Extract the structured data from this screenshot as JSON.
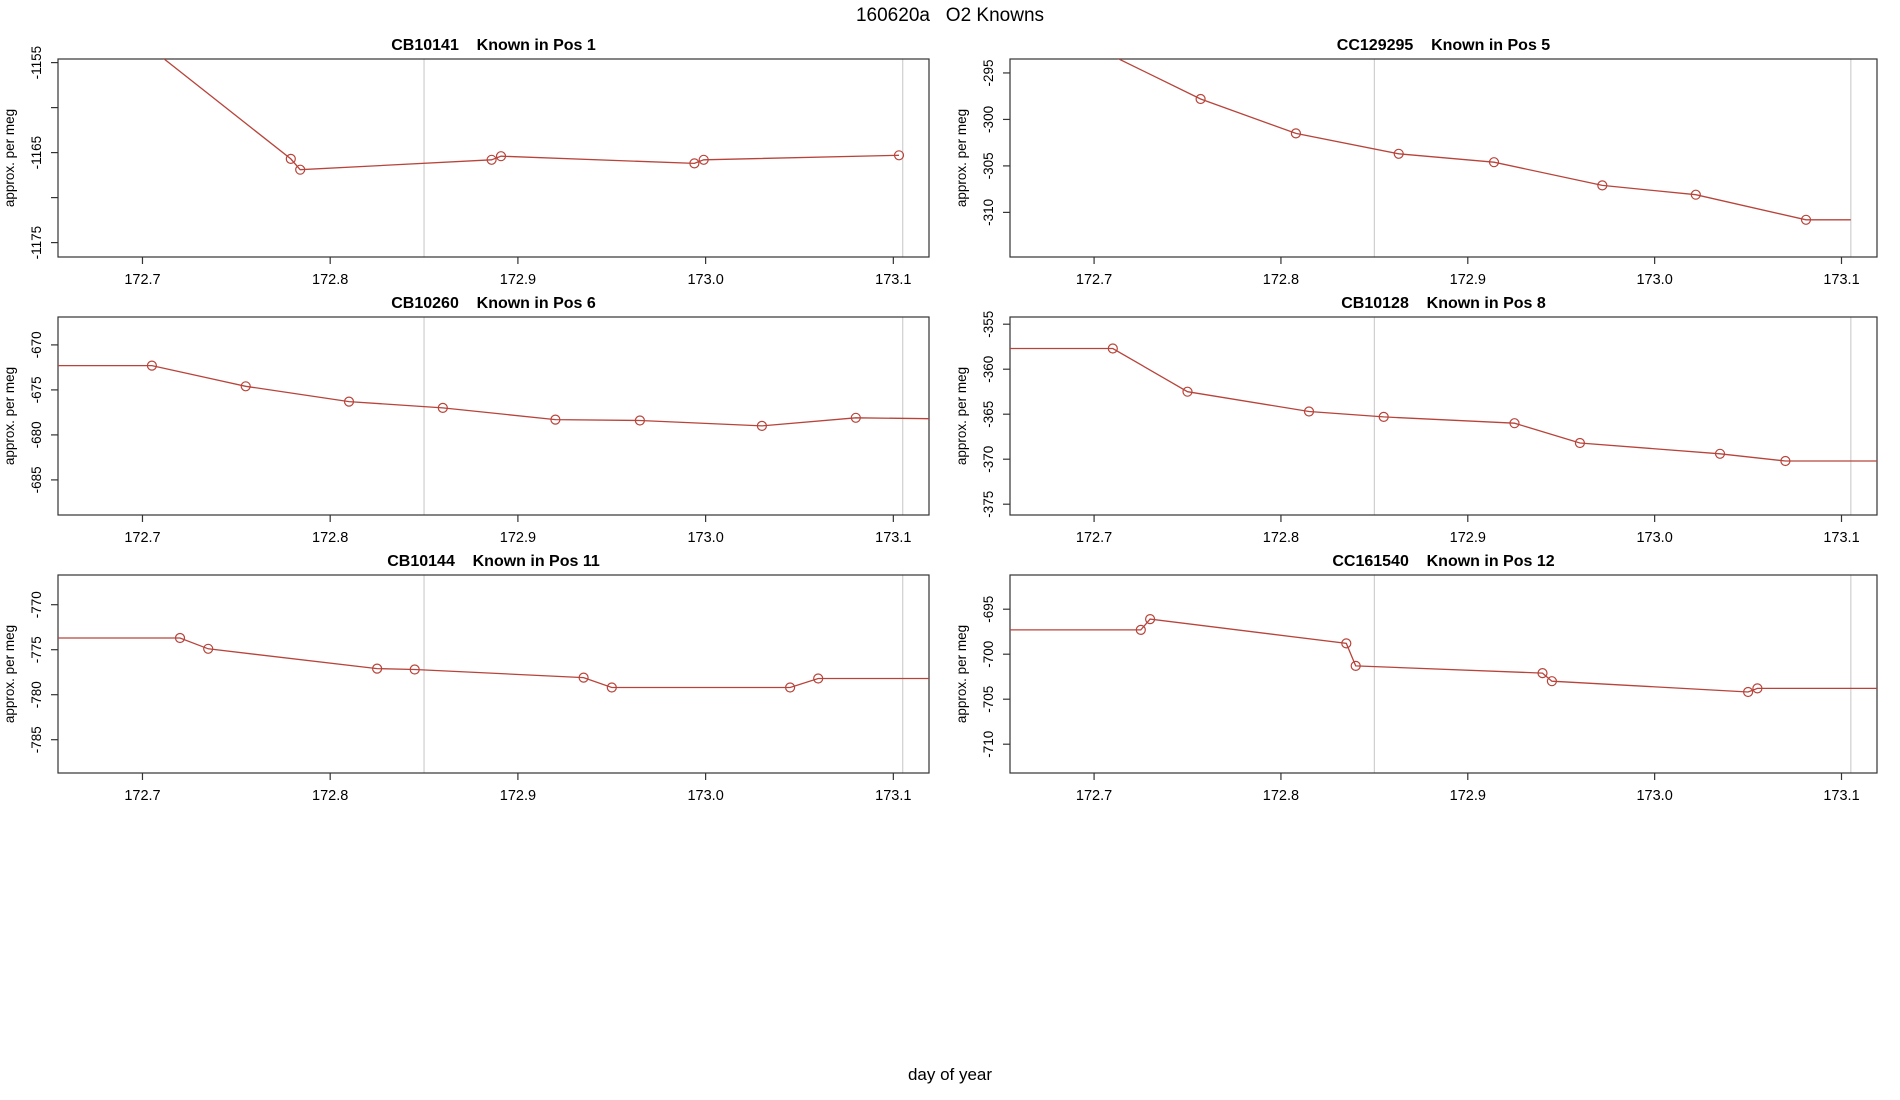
{
  "title": "160620a   O2 Knowns",
  "xlabel": "day of year",
  "colors": {
    "line": "#b8433a",
    "marker": "#b8433a",
    "vline": "#cfcfcf",
    "box": "#333333",
    "tick": "#333333",
    "text": "#000000"
  },
  "chart_data": [
    {
      "type": "line",
      "title_code": "CB10141",
      "title_pos": "Known in Pos 1",
      "ylabel": "approx. per meg",
      "xlim": [
        172.655,
        173.119
      ],
      "ylim": [
        -1176.6,
        -1154.6
      ],
      "xticks": [
        172.7,
        172.8,
        172.9,
        173.0,
        173.1
      ],
      "xtick_labels": [
        "172.7",
        "172.8",
        "172.9",
        "173.0",
        "173.1"
      ],
      "yticks": [
        -1155,
        -1160,
        -1165,
        -1170,
        -1175
      ],
      "ytick_labels": [
        "-1155",
        "",
        "-1165",
        "",
        "-1175"
      ],
      "vlines": [
        172.85,
        173.105
      ],
      "pre": [
        172.7,
        -1152.7
      ],
      "points": [
        [
          172.779,
          -1165.7
        ],
        [
          172.784,
          -1166.9
        ],
        [
          172.886,
          -1165.8
        ],
        [
          172.891,
          -1165.4
        ],
        [
          172.994,
          -1166.2
        ],
        [
          172.999,
          -1165.8
        ],
        [
          173.103,
          -1165.3
        ]
      ],
      "post": null
    },
    {
      "type": "line",
      "title_code": "CC129295",
      "title_pos": "Known in Pos 5",
      "ylabel": "approx. per meg",
      "xlim": [
        172.655,
        173.119
      ],
      "ylim": [
        -314.8,
        -293.5
      ],
      "xticks": [
        172.7,
        172.8,
        172.9,
        173.0,
        173.1
      ],
      "xtick_labels": [
        "172.7",
        "172.8",
        "172.9",
        "173.0",
        "173.1"
      ],
      "yticks": [
        -295,
        -300,
        -305,
        -310
      ],
      "ytick_labels": [
        "-295",
        "-300",
        "-305",
        "-310"
      ],
      "vlines": [
        172.85,
        173.105
      ],
      "pre": [
        172.7,
        -292.2
      ],
      "points": [
        [
          172.757,
          -297.8
        ],
        [
          172.808,
          -301.5
        ],
        [
          172.863,
          -303.7
        ],
        [
          172.914,
          -304.6
        ],
        [
          172.972,
          -307.1
        ],
        [
          173.022,
          -308.1
        ],
        [
          173.081,
          -310.8
        ]
      ],
      "post": [
        173.105,
        -310.8
      ]
    },
    {
      "type": "line",
      "title_code": "CB10260",
      "title_pos": "Known in Pos 6",
      "ylabel": "approx. per meg",
      "xlim": [
        172.655,
        173.119
      ],
      "ylim": [
        -688.9,
        -666.9
      ],
      "xticks": [
        172.7,
        172.8,
        172.9,
        173.0,
        173.1
      ],
      "xtick_labels": [
        "172.7",
        "172.8",
        "172.9",
        "173.0",
        "173.1"
      ],
      "yticks": [
        -670,
        -675,
        -680,
        -685
      ],
      "ytick_labels": [
        "-670",
        "-675",
        "-680",
        "-685"
      ],
      "vlines": [
        172.85,
        173.105
      ],
      "pre": [
        172.655,
        -672.3
      ],
      "points": [
        [
          172.705,
          -672.3
        ],
        [
          172.755,
          -674.6
        ],
        [
          172.81,
          -676.3
        ],
        [
          172.86,
          -677.0
        ],
        [
          172.92,
          -678.3
        ],
        [
          172.965,
          -678.4
        ],
        [
          173.03,
          -679.0
        ],
        [
          173.08,
          -678.1
        ]
      ],
      "post": [
        173.119,
        -678.2
      ]
    },
    {
      "type": "line",
      "title_code": "CB10128",
      "title_pos": "Known in Pos 8",
      "ylabel": "approx. per meg",
      "xlim": [
        172.655,
        173.119
      ],
      "ylim": [
        -376.2,
        -354.2
      ],
      "xticks": [
        172.7,
        172.8,
        172.9,
        173.0,
        173.1
      ],
      "xtick_labels": [
        "172.7",
        "172.8",
        "172.9",
        "173.0",
        "173.1"
      ],
      "yticks": [
        -355,
        -360,
        -365,
        -370,
        -375
      ],
      "ytick_labels": [
        "-355",
        "-360",
        "-365",
        "-370",
        "-375"
      ],
      "vlines": [
        172.85,
        173.105
      ],
      "pre": [
        172.655,
        -357.7
      ],
      "points": [
        [
          172.71,
          -357.7
        ],
        [
          172.75,
          -362.5
        ],
        [
          172.815,
          -364.7
        ],
        [
          172.855,
          -365.3
        ],
        [
          172.925,
          -366.0
        ],
        [
          172.96,
          -368.2
        ],
        [
          173.035,
          -369.4
        ],
        [
          173.07,
          -370.2
        ]
      ],
      "post": [
        173.119,
        -370.2
      ]
    },
    {
      "type": "line",
      "title_code": "CB10144",
      "title_pos": "Known in Pos 11",
      "ylabel": "approx. per meg",
      "xlim": [
        172.655,
        173.119
      ],
      "ylim": [
        -788.7,
        -766.7
      ],
      "xticks": [
        172.7,
        172.8,
        172.9,
        173.0,
        173.1
      ],
      "xtick_labels": [
        "172.7",
        "172.8",
        "172.9",
        "173.0",
        "173.1"
      ],
      "yticks": [
        -770,
        -775,
        -780,
        -785
      ],
      "ytick_labels": [
        "-770",
        "-775",
        "-780",
        "-785"
      ],
      "vlines": [
        172.85,
        173.105
      ],
      "pre": [
        172.655,
        -773.7
      ],
      "points": [
        [
          172.72,
          -773.7
        ],
        [
          172.735,
          -774.9
        ],
        [
          172.825,
          -777.1
        ],
        [
          172.845,
          -777.2
        ],
        [
          172.935,
          -778.1
        ],
        [
          172.95,
          -779.2
        ],
        [
          173.045,
          -779.2
        ],
        [
          173.06,
          -778.2
        ]
      ],
      "post": [
        173.119,
        -778.2
      ]
    },
    {
      "type": "line",
      "title_code": "CC161540",
      "title_pos": "Known in Pos 12",
      "ylabel": "approx. per meg",
      "xlim": [
        172.655,
        173.119
      ],
      "ylim": [
        -713.2,
        -691.2
      ],
      "xticks": [
        172.7,
        172.8,
        172.9,
        173.0,
        173.1
      ],
      "xtick_labels": [
        "172.7",
        "172.8",
        "172.9",
        "173.0",
        "173.1"
      ],
      "yticks": [
        -695,
        -700,
        -705,
        -710
      ],
      "ytick_labels": [
        "-695",
        "-700",
        "-705",
        "-710"
      ],
      "vlines": [
        172.85,
        173.105
      ],
      "pre": [
        172.655,
        -697.3
      ],
      "points": [
        [
          172.725,
          -697.3
        ],
        [
          172.73,
          -696.1
        ],
        [
          172.835,
          -698.8
        ],
        [
          172.84,
          -701.3
        ],
        [
          172.94,
          -702.1
        ],
        [
          172.945,
          -703.0
        ],
        [
          173.05,
          -704.2
        ],
        [
          173.055,
          -703.8
        ]
      ],
      "post": [
        173.119,
        -703.8
      ]
    }
  ]
}
